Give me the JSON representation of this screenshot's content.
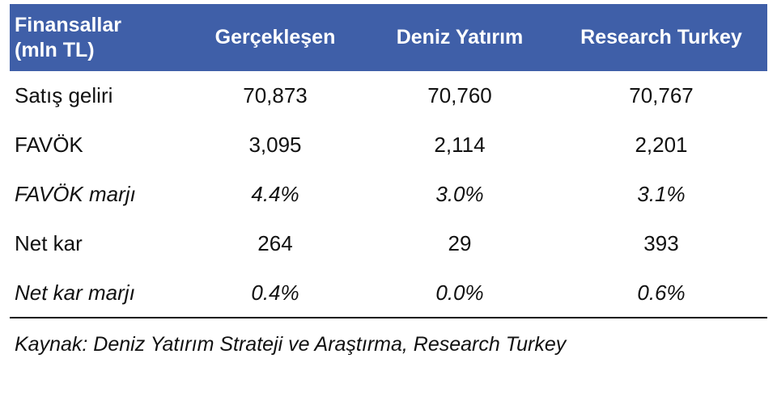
{
  "table": {
    "header": [
      "Finansallar\n(mln TL)",
      "Gerçekleşen",
      "Deniz Yatırım",
      "Research Turkey"
    ],
    "rows": [
      [
        "Satış geliri",
        "70,873",
        "70,760",
        "70,767"
      ],
      [
        "FAVÖK",
        "3,095",
        "2,114",
        "2,201"
      ],
      [
        "FAVÖK marjı",
        "4.4%",
        "3.0%",
        "3.1%"
      ],
      [
        "Net kar",
        "264",
        "29",
        "393"
      ],
      [
        "Net kar marjı",
        "0.4%",
        "0.0%",
        "0.6%"
      ]
    ]
  },
  "source": "Kaynak: Deniz Yatırım Strateji ve Araştırma, Research Turkey"
}
